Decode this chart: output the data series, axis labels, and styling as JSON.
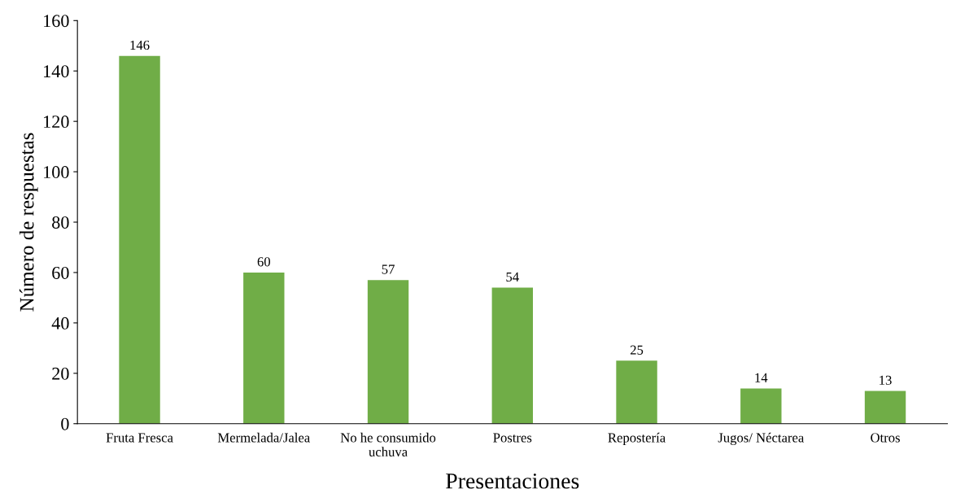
{
  "chart_data": {
    "type": "bar",
    "categories": [
      "Fruta Fresca",
      "Mermelada/Jalea",
      "No he consumido\nuchuva",
      "Postres",
      "Repostería",
      "Jugos/ Néctarea",
      "Otros"
    ],
    "values": [
      146,
      60,
      57,
      54,
      25,
      14,
      13
    ],
    "color": "#70ad47",
    "xlabel": "Presentaciones",
    "ylabel": "Número de respuestas",
    "ylim": [
      0,
      160
    ],
    "yticks": [
      0,
      20,
      40,
      60,
      80,
      100,
      120,
      140,
      160
    ],
    "data_labels": true,
    "grid": false,
    "legend": false
  }
}
